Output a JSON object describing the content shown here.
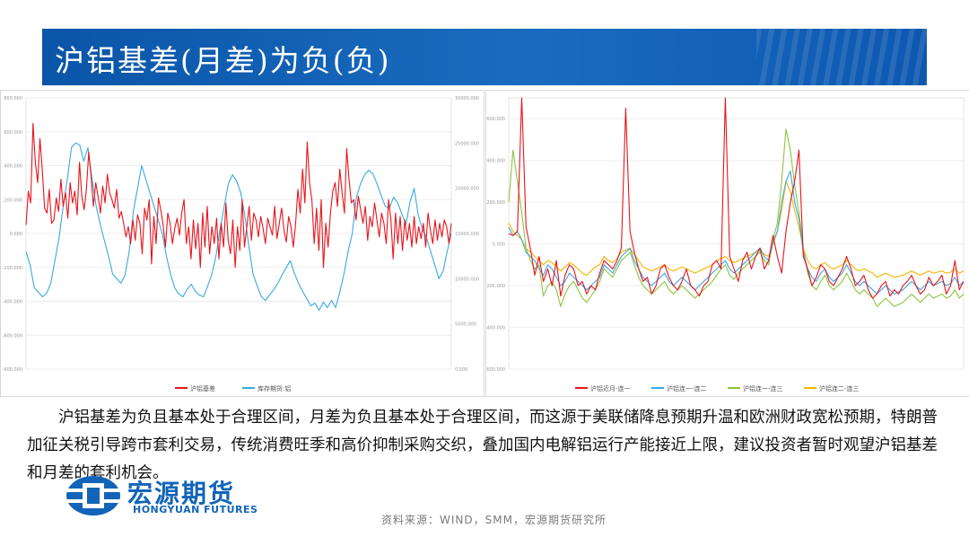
{
  "slide": {
    "title": "沪铝基差(月差)为负(负)",
    "paragraph": "沪铝基差为负且基本处于合理区间，月差为负且基本处于合理区间，而这源于美联储降息预期升温和欧洲财政宽松预期，特朗普加征关税引导跨市套利交易，传统消费旺季和高价抑制采购交织，叠加国内电解铝运行产能接近上限，建议投资者暂时观望沪铝基差和月差的套利机会。",
    "logo_cn": "宏源期货",
    "logo_en": "HONGYUAN FUTURES",
    "source": "资料来源：WIND，SMM，宏源期货研究所"
  },
  "colors": {
    "red": "#e8141b",
    "blue": "#3aa8e4",
    "green": "#8cc63f",
    "yellow": "#f5b400",
    "title_bg": "#0a55a8"
  },
  "chart_data": [
    {
      "type": "line",
      "title": "",
      "y_left": {
        "ticks": [
          "800.000",
          "600.000",
          "400.000",
          "200.000",
          "0.000",
          "-200.000",
          "-400.000",
          "-600.000",
          "-800.000"
        ],
        "ylim": [
          -800,
          800
        ]
      },
      "y_right": {
        "ticks": [
          "30000.000",
          "25000.000",
          "20000.000",
          "15000.000",
          "10000.000",
          "5000.000",
          "0.000"
        ],
        "ylim": [
          0,
          30000
        ]
      },
      "x_range": [
        "2020-11",
        "2025-08"
      ],
      "series": [
        {
          "name": "沪铝基差",
          "axis": "left",
          "color": "#e8141b",
          "values": [
            50,
            250,
            180,
            650,
            420,
            300,
            560,
            380,
            150,
            120,
            260,
            60,
            80,
            210,
            130,
            320,
            160,
            240,
            90,
            300,
            180,
            250,
            110,
            420,
            220,
            140,
            260,
            480,
            340,
            160,
            300,
            220,
            120,
            280,
            180,
            350,
            240,
            200,
            150,
            260,
            90,
            130,
            60,
            -20,
            40,
            -60,
            80,
            -40,
            110,
            60,
            -120,
            150,
            80,
            200,
            -180,
            100,
            -60,
            210,
            140,
            50,
            -80,
            120,
            60,
            -60,
            30,
            90,
            -10,
            120,
            200,
            -60,
            40,
            -150,
            80,
            -90,
            60,
            -200,
            120,
            -80,
            160,
            -120,
            40,
            -60,
            90,
            -150,
            60,
            -80,
            180,
            -40,
            -120,
            80,
            -200,
            40,
            -100,
            200,
            -80,
            40,
            160,
            -40,
            120,
            80,
            -20,
            100,
            30,
            -60,
            90,
            40,
            -10,
            160,
            -30,
            60,
            150,
            20,
            -50,
            100,
            40,
            -80,
            60,
            260,
            120,
            380,
            180,
            540,
            300,
            200,
            -60,
            150,
            -100,
            200,
            -200,
            60,
            -80,
            120,
            250,
            300,
            160,
            380,
            240,
            120,
            500,
            320,
            180,
            200,
            80,
            220,
            140,
            60,
            160,
            -40,
            100,
            40,
            180,
            80,
            -20,
            120,
            60,
            -60,
            200,
            80,
            -150,
            120,
            -60,
            100,
            -100,
            80,
            -40,
            60,
            -80,
            100,
            -60,
            40,
            -30,
            60,
            -80,
            120,
            20,
            -60,
            80,
            -40,
            60,
            -20,
            80,
            40,
            -60,
            60
          ]
        },
        {
          "name": "库存期货:铝",
          "axis": "right",
          "color": "#3aa8e4",
          "values": [
            13000,
            11500,
            9000,
            8500,
            8000,
            8400,
            9500,
            12000,
            14500,
            18000,
            21000,
            24500,
            25000,
            24800,
            23000,
            24500,
            21000,
            18000,
            16000,
            14200,
            12500,
            10500,
            10000,
            9500,
            10400,
            13000,
            17500,
            20000,
            22500,
            21000,
            19500,
            18000,
            16500,
            15000,
            12500,
            10500,
            9000,
            8300,
            8000,
            8800,
            9400,
            8600,
            8200,
            8000,
            9200,
            10500,
            12500,
            15500,
            18000,
            20500,
            21500,
            20800,
            19500,
            17000,
            13500,
            10500,
            9200,
            8000,
            7600,
            8200,
            8800,
            9500,
            10400,
            11200,
            12000,
            10600,
            9500,
            8600,
            7800,
            7000,
            7300,
            6500,
            7400,
            6800,
            7600,
            6800,
            8500,
            10500,
            13000,
            15000,
            19000,
            20500,
            21500,
            22000,
            21600,
            20500,
            19200,
            18000,
            17800,
            19000,
            18400,
            17200,
            16000,
            18500,
            20000,
            17000,
            15500,
            14500,
            13000,
            11500,
            10000,
            10800,
            13000,
            15000
          ]
        }
      ]
    },
    {
      "type": "line",
      "title": "",
      "y_left": {
        "ticks": [
          "600.000",
          "400.000",
          "200.000",
          "0.000",
          "-200.000",
          "-400.000",
          "-600.000"
        ],
        "ylim": [
          -600,
          700
        ]
      },
      "x_range": [
        "2020-11",
        "2025-08"
      ],
      "series": [
        {
          "name": "沪铝近月-连一",
          "color": "#e8141b",
          "values": [
            50,
            40,
            60,
            700,
            80,
            -20,
            -150,
            -60,
            -180,
            -120,
            -200,
            -80,
            -250,
            -150,
            -100,
            -120,
            -200,
            -180,
            -240,
            -200,
            -220,
            -140,
            -80,
            -100,
            -120,
            -80,
            -20,
            650,
            60,
            -40,
            -120,
            -180,
            -160,
            -240,
            -200,
            -120,
            -100,
            -160,
            -200,
            -220,
            -180,
            -120,
            -200,
            -220,
            -250,
            -200,
            -180,
            -100,
            -80,
            -120,
            700,
            -60,
            -120,
            -180,
            -80,
            -40,
            -120,
            -60,
            -20,
            -120,
            -80,
            40,
            -60,
            -140,
            60,
            200,
            300,
            450,
            -60,
            -120,
            -200,
            -160,
            -100,
            -120,
            -180,
            -200,
            -160,
            -120,
            -60,
            -120,
            -200,
            -180,
            -150,
            -220,
            -260,
            -240,
            -200,
            -180,
            -250,
            -220,
            -240,
            -200,
            -180,
            -150,
            -200,
            -240,
            -220,
            -160,
            -200,
            -180,
            -150,
            -240,
            -200,
            -80,
            -220,
            -180
          ]
        },
        {
          "name": "沪铝连一-连二",
          "color": "#3aa8e4",
          "values": [
            80,
            40,
            60,
            20,
            -40,
            -60,
            -80,
            -120,
            -150,
            -100,
            -120,
            -160,
            -200,
            -180,
            -140,
            -160,
            -180,
            -200,
            -220,
            -200,
            -180,
            -160,
            -100,
            -120,
            -140,
            -100,
            -60,
            -40,
            -20,
            -80,
            -120,
            -160,
            -180,
            -200,
            -180,
            -160,
            -140,
            -180,
            -200,
            -180,
            -160,
            -180,
            -200,
            -220,
            -200,
            -180,
            -160,
            -140,
            -120,
            -100,
            -80,
            -120,
            -140,
            -120,
            -100,
            -80,
            -60,
            -40,
            -20,
            -60,
            -80,
            0,
            60,
            200,
            300,
            350,
            200,
            120,
            -40,
            -120,
            -160,
            -180,
            -140,
            -120,
            -160,
            -180,
            -160,
            -140,
            -100,
            -140,
            -180,
            -200,
            -180,
            -200,
            -220,
            -240,
            -220,
            -200,
            -220,
            -240,
            -230,
            -220,
            -200,
            -180,
            -200,
            -220,
            -200,
            -180,
            -200,
            -190,
            -180,
            -200,
            -190,
            -160,
            -200,
            -180
          ]
        },
        {
          "name": "沪铝连一-连三",
          "color": "#8cc63f",
          "values": [
            200,
            450,
            300,
            150,
            -20,
            -80,
            -120,
            -100,
            -250,
            -200,
            -180,
            -220,
            -300,
            -240,
            -200,
            -180,
            -220,
            -260,
            -280,
            -250,
            -220,
            -180,
            -120,
            -140,
            -160,
            -120,
            -80,
            -60,
            -40,
            -100,
            -160,
            -200,
            -220,
            -240,
            -220,
            -200,
            -180,
            -220,
            -240,
            -220,
            -200,
            -220,
            -240,
            -260,
            -240,
            -220,
            -200,
            -180,
            -150,
            -120,
            -100,
            -150,
            -170,
            -140,
            -120,
            -100,
            -80,
            -60,
            -40,
            -80,
            -100,
            20,
            100,
            300,
            550,
            450,
            280,
            150,
            -20,
            -140,
            -200,
            -220,
            -180,
            -150,
            -200,
            -220,
            -200,
            -180,
            -140,
            -180,
            -220,
            -240,
            -220,
            -240,
            -260,
            -300,
            -280,
            -260,
            -280,
            -300,
            -290,
            -280,
            -260,
            -240,
            -260,
            -280,
            -260,
            -240,
            -260,
            -250,
            -240,
            -260,
            -250,
            -220,
            -260,
            -240
          ]
        },
        {
          "name": "沪铝连二-连三",
          "color": "#f5b400",
          "values": [
            100,
            60,
            40,
            20,
            -20,
            -40,
            -60,
            -80,
            -100,
            -80,
            -90,
            -110,
            -130,
            -110,
            -90,
            -100,
            -120,
            -140,
            -150,
            -130,
            -110,
            -100,
            -60,
            -80,
            -90,
            -70,
            -40,
            -30,
            -20,
            -50,
            -80,
            -110,
            -120,
            -130,
            -120,
            -110,
            -100,
            -120,
            -130,
            -120,
            -110,
            -120,
            -130,
            -140,
            -130,
            -120,
            -110,
            -100,
            -80,
            -70,
            -60,
            -80,
            -90,
            -80,
            -70,
            -60,
            -50,
            -40,
            -30,
            -50,
            -60,
            10,
            60,
            160,
            300,
            250,
            160,
            80,
            -20,
            -80,
            -110,
            -120,
            -100,
            -90,
            -110,
            -120,
            -110,
            -100,
            -80,
            -100,
            -120,
            -130,
            -120,
            -130,
            -140,
            -160,
            -150,
            -140,
            -150,
            -160,
            -155,
            -150,
            -140,
            -130,
            -140,
            -150,
            -140,
            -130,
            -140,
            -135,
            -130,
            -140,
            -135,
            -120,
            -140,
            -130
          ]
        }
      ]
    }
  ]
}
